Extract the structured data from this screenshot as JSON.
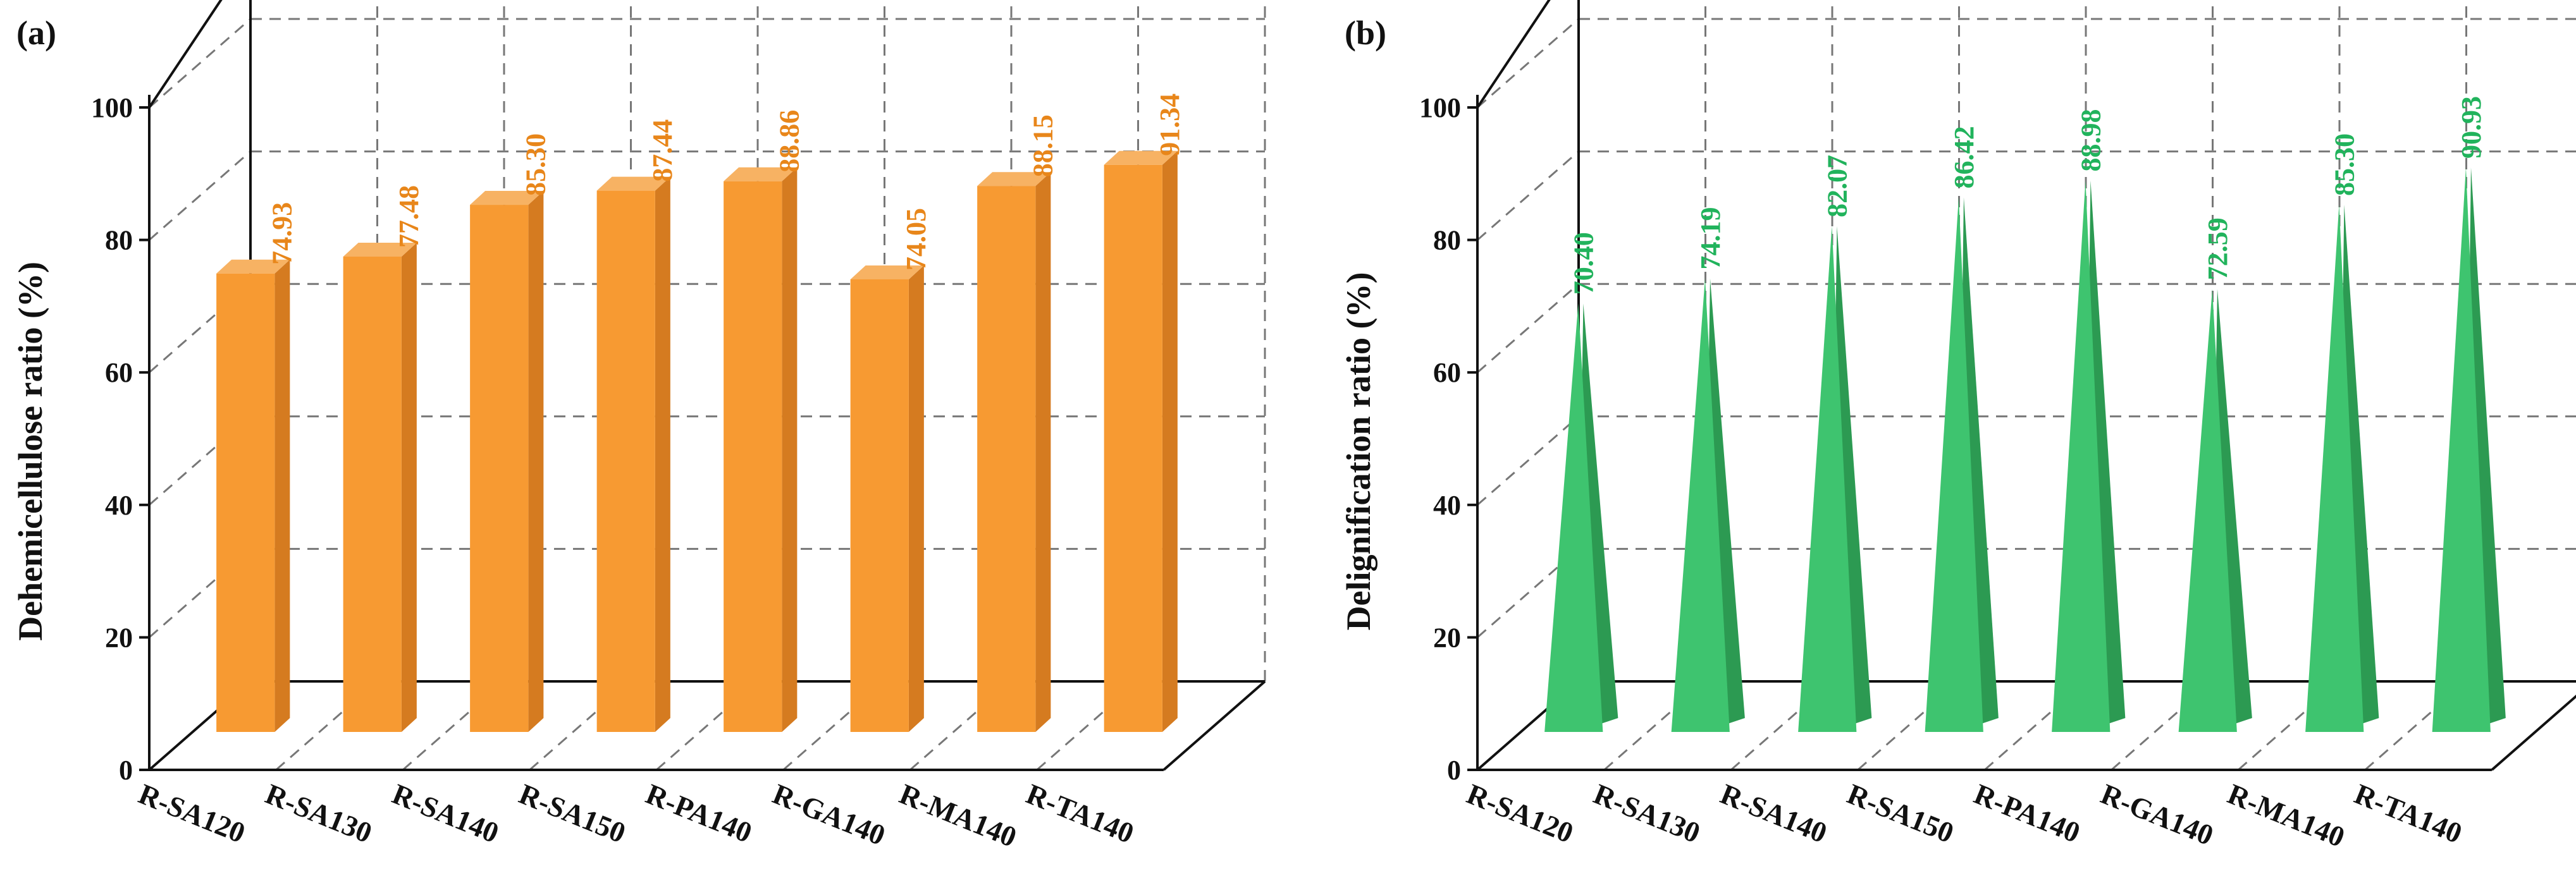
{
  "chart_data": [
    {
      "type": "bar",
      "panel_label": "(a)",
      "ylabel": "Dehemicellulose ratio (%)",
      "xlabel": "",
      "ylim": [
        0,
        100
      ],
      "yticks": [
        "0",
        "20",
        "40",
        "60",
        "80",
        "100"
      ],
      "grid": true,
      "categories": [
        "R-SA120",
        "R-SA130",
        "R-SA140",
        "R-SA150",
        "R-PA140",
        "R-GA140",
        "R-MA140",
        "R-TA140"
      ],
      "values": [
        74.93,
        77.48,
        85.3,
        87.44,
        88.86,
        74.05,
        88.15,
        91.34
      ],
      "value_labels": [
        "74.93",
        "77.48",
        "85.30",
        "87.44",
        "88.86",
        "74.05",
        "88.15",
        "91.34"
      ],
      "bar_shape": "box",
      "colors": {
        "front": "#f79a32",
        "side": "#d57b20",
        "top": "#f7b263",
        "label": "#e8861a"
      }
    },
    {
      "type": "bar",
      "panel_label": "(b)",
      "ylabel": "Delignification ratio (%)",
      "xlabel": "",
      "ylim": [
        0,
        100
      ],
      "yticks": [
        "0",
        "20",
        "40",
        "60",
        "80",
        "100"
      ],
      "grid": true,
      "categories": [
        "R-SA120",
        "R-SA130",
        "R-SA140",
        "R-SA150",
        "R-PA140",
        "R-GA140",
        "R-MA140",
        "R-TA140"
      ],
      "values": [
        70.4,
        74.19,
        82.07,
        86.42,
        88.98,
        72.59,
        85.3,
        90.93
      ],
      "value_labels": [
        "70.40",
        "74.19",
        "82.07",
        "86.42",
        "88.98",
        "72.59",
        "85.30",
        "90.93"
      ],
      "bar_shape": "pyramid",
      "colors": {
        "front": "#3ec46f",
        "side": "#2c9a52",
        "top": "#63d28a",
        "label": "#21b35c"
      }
    }
  ]
}
